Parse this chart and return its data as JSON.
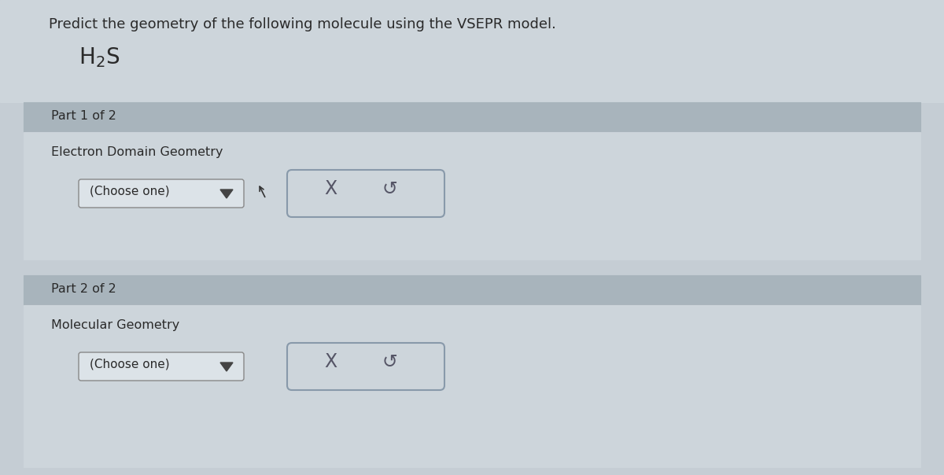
{
  "bg_outer": "#c5cdd4",
  "bg_top_area": "#cdd5db",
  "section_header_bg": "#a8b4bc",
  "section_content_bg": "#cdd5db",
  "title_text": "Predict the geometry of the following molecule using the VSEPR model.",
  "part1_label": "Part 1 of 2",
  "part1_sublabel": "Electron Domain Geometry",
  "part2_label": "Part 2 of 2",
  "part2_sublabel": "Molecular Geometry",
  "dropdown_text": "(Choose one)",
  "button_x": "X",
  "button_undo": "↺",
  "title_fontsize": 13,
  "molecule_fontsize": 18,
  "label_fontsize": 11.5,
  "dropdown_fontsize": 11,
  "button_fontsize": 15,
  "text_color": "#333333",
  "dark_text": "#2a2a2a"
}
